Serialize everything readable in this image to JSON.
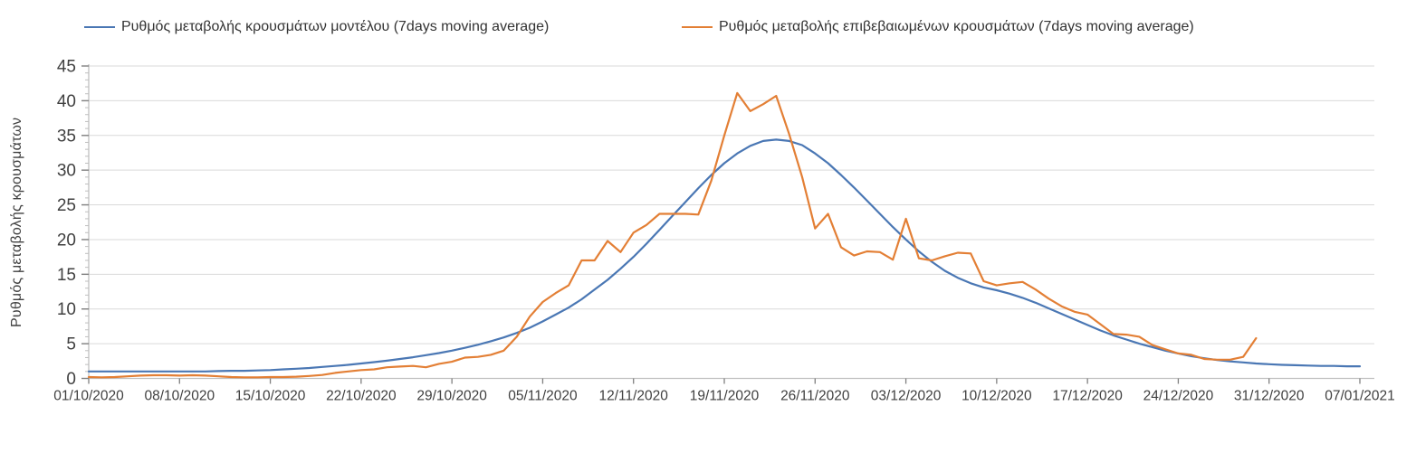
{
  "legend": {
    "model_label": "Ρυθμός μεταβολής κρουσμάτων μοντέλου (7days moving average)",
    "confirmed_label": "Ρυθμός μεταβολής επιβεβαιωμένων κρουσμάτων (7days moving average)"
  },
  "chart_data": {
    "type": "line",
    "title": "",
    "xlabel": "",
    "ylabel": "Ρυθμός μεταβολής κρουσμάτων",
    "ylim": [
      0,
      45
    ],
    "ytick_interval": 5,
    "yminor_interval": 1,
    "grid": "horizontal",
    "legend_position": "top",
    "x_tick_labels": [
      "01/10/2020",
      "08/10/2020",
      "15/10/2020",
      "22/10/2020",
      "29/10/2020",
      "05/11/2020",
      "12/11/2020",
      "19/11/2020",
      "26/11/2020",
      "03/12/2020",
      "10/12/2020",
      "17/12/2020",
      "24/12/2020",
      "31/12/2020",
      "07/01/2021"
    ],
    "x_days_per_tick": 7,
    "x_resolution": "daily",
    "colors": {
      "model": "#4a77b4",
      "confirmed": "#e37f35",
      "gridline": "#d9d9d9",
      "axis_line": "#bfbfbf",
      "tick": "#7f7f7f",
      "minor_tick": "#bfbfbf",
      "tick_label": "#404040"
    },
    "series": [
      {
        "name": "Ρυθμός μεταβολής κρουσμάτων μοντέλου (7days moving average)",
        "color_key": "model",
        "values": [
          1.0,
          1.0,
          1.0,
          1.0,
          1.0,
          1.0,
          1.0,
          1.0,
          1.0,
          1.0,
          1.05,
          1.1,
          1.1,
          1.15,
          1.2,
          1.3,
          1.4,
          1.5,
          1.65,
          1.8,
          1.95,
          2.15,
          2.35,
          2.55,
          2.8,
          3.05,
          3.35,
          3.65,
          4.0,
          4.4,
          4.85,
          5.35,
          5.9,
          6.55,
          7.3,
          8.2,
          9.2,
          10.2,
          11.4,
          12.8,
          14.2,
          15.8,
          17.5,
          19.4,
          21.4,
          23.4,
          25.4,
          27.4,
          29.3,
          31.0,
          32.4,
          33.5,
          34.2,
          34.4,
          34.2,
          33.6,
          32.4,
          31.0,
          29.3,
          27.5,
          25.6,
          23.7,
          21.8,
          20.0,
          18.3,
          16.8,
          15.5,
          14.5,
          13.7,
          13.1,
          12.7,
          12.2,
          11.6,
          10.9,
          10.1,
          9.3,
          8.5,
          7.7,
          6.9,
          6.2,
          5.6,
          5.0,
          4.5,
          4.0,
          3.6,
          3.2,
          2.9,
          2.65,
          2.45,
          2.3,
          2.15,
          2.05,
          1.95,
          1.9,
          1.85,
          1.8,
          1.8,
          1.75,
          1.75
        ]
      },
      {
        "name": "Ρυθμός μεταβολής επιβεβαιωμένων κρουσμάτων (7days moving average)",
        "color_key": "confirmed",
        "values": [
          0.2,
          0.15,
          0.2,
          0.3,
          0.4,
          0.45,
          0.45,
          0.4,
          0.45,
          0.4,
          0.3,
          0.2,
          0.15,
          0.15,
          0.2,
          0.2,
          0.25,
          0.35,
          0.5,
          0.8,
          1.0,
          1.2,
          1.3,
          1.6,
          1.7,
          1.8,
          1.6,
          2.1,
          2.4,
          3.0,
          3.1,
          3.4,
          4.0,
          6.0,
          8.9,
          11.0,
          12.3,
          13.4,
          17.0,
          17.0,
          19.8,
          18.2,
          21.0,
          22.1,
          23.7,
          23.7,
          23.7,
          23.6,
          28.5,
          35.0,
          41.1,
          38.5,
          39.5,
          40.7,
          35.2,
          29.0,
          21.6,
          23.7,
          18.9,
          17.7,
          18.3,
          18.2,
          17.1,
          23.0,
          17.3,
          17.0,
          17.6,
          18.1,
          18.0,
          14.0,
          13.4,
          13.7,
          13.9,
          12.8,
          11.5,
          10.4,
          9.6,
          9.2,
          7.8,
          6.4,
          6.3,
          6.0,
          4.8,
          4.2,
          3.6,
          3.4,
          2.8,
          2.7,
          2.7,
          3.1,
          5.8
        ]
      }
    ]
  }
}
